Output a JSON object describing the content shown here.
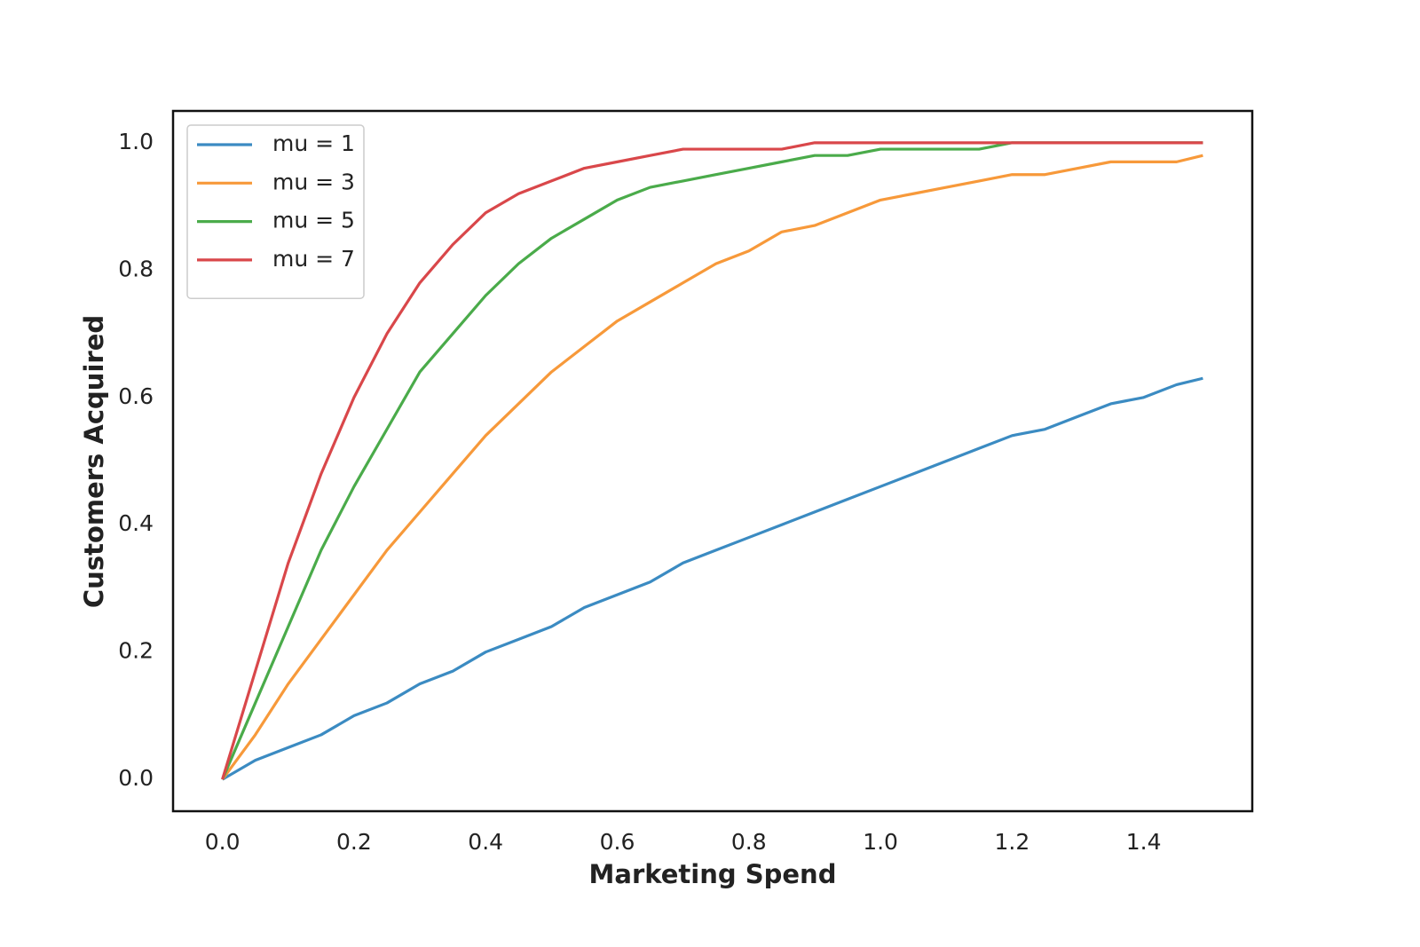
{
  "chart_data": {
    "type": "line",
    "x_label": "Marketing Spend",
    "y_label": "Customers Acquired",
    "x": [
      0,
      0.05,
      0.1,
      0.15,
      0.2,
      0.25,
      0.3,
      0.35,
      0.4,
      0.45,
      0.5,
      0.55,
      0.6,
      0.65,
      0.7,
      0.75,
      0.8,
      0.85,
      0.9,
      0.95,
      1.0,
      1.05,
      1.1,
      1.15,
      1.2,
      1.25,
      1.3,
      1.35,
      1.4,
      1.45,
      1.49
    ],
    "series": [
      {
        "name": "mu = 1",
        "color": "#3b8bc2",
        "values": [
          0,
          0.03,
          0.05,
          0.07,
          0.1,
          0.12,
          0.15,
          0.17,
          0.2,
          0.22,
          0.24,
          0.27,
          0.29,
          0.31,
          0.34,
          0.36,
          0.38,
          0.4,
          0.42,
          0.44,
          0.46,
          0.48,
          0.5,
          0.52,
          0.54,
          0.55,
          0.57,
          0.59,
          0.6,
          0.62,
          0.63
        ]
      },
      {
        "name": "mu = 3",
        "color": "#f7993a",
        "values": [
          0,
          0.07,
          0.15,
          0.22,
          0.29,
          0.36,
          0.42,
          0.48,
          0.54,
          0.59,
          0.64,
          0.68,
          0.72,
          0.75,
          0.78,
          0.81,
          0.83,
          0.86,
          0.87,
          0.89,
          0.91,
          0.92,
          0.93,
          0.94,
          0.95,
          0.95,
          0.96,
          0.97,
          0.97,
          0.97,
          0.98
        ]
      },
      {
        "name": "mu = 5",
        "color": "#4aab4a",
        "values": [
          0,
          0.12,
          0.24,
          0.36,
          0.46,
          0.55,
          0.64,
          0.7,
          0.76,
          0.81,
          0.85,
          0.88,
          0.91,
          0.93,
          0.94,
          0.95,
          0.96,
          0.97,
          0.98,
          0.98,
          0.99,
          0.99,
          0.99,
          0.99,
          1.0,
          1.0,
          1.0,
          1.0,
          1.0,
          1.0,
          1.0
        ]
      },
      {
        "name": "mu = 7",
        "color": "#d9474a",
        "values": [
          0,
          0.17,
          0.34,
          0.48,
          0.6,
          0.7,
          0.78,
          0.84,
          0.89,
          0.92,
          0.94,
          0.96,
          0.97,
          0.98,
          0.99,
          0.99,
          0.99,
          0.99,
          1.0,
          1.0,
          1.0,
          1.0,
          1.0,
          1.0,
          1.0,
          1.0,
          1.0,
          1.0,
          1.0,
          1.0,
          1.0
        ]
      }
    ],
    "xlim": [
      -0.075,
      1.565
    ],
    "ylim": [
      -0.05,
      1.05
    ],
    "xticks": [
      {
        "value": 0,
        "label": "0.0"
      },
      0.2,
      0.4,
      0.6,
      0.8,
      {
        "value": 1,
        "label": "1.0"
      },
      1.2,
      1.4
    ],
    "yticks": [
      {
        "value": 0,
        "label": "0.0"
      },
      0.2,
      0.4,
      0.6,
      0.8,
      {
        "value": 1,
        "label": "1.0"
      }
    ],
    "legend": "upper left",
    "grid": false
  }
}
